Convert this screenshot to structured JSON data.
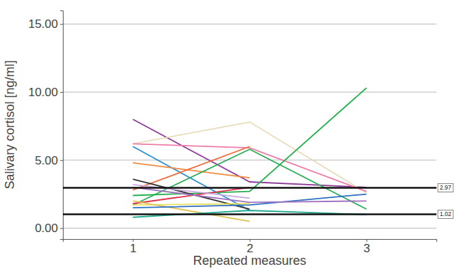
{
  "chart_data": {
    "type": "line",
    "x_label": "Repeated measures",
    "y_label": "Salivary cortisol [ng/ml]",
    "x": [
      1,
      2,
      3
    ],
    "xlim": [
      0.4,
      3.6
    ],
    "xticks": [
      1,
      2,
      3
    ],
    "ylim": [
      -0.8,
      16.0
    ],
    "yticks": [
      {
        "value": 0,
        "label": "0.00"
      },
      {
        "value": 5,
        "label": "5.00"
      },
      {
        "value": 10,
        "label": "10.00"
      },
      {
        "value": 15,
        "label": "15.00"
      }
    ],
    "grid": true,
    "hlines": [
      2.97,
      1.02
    ],
    "series": [
      {
        "color": "#8e3a9a",
        "values": [
          8.0,
          3.4,
          3.0
        ]
      },
      {
        "color": "#e8dcb8",
        "values": [
          6.2,
          7.8,
          2.6
        ]
      },
      {
        "color": "#f07aa8",
        "values": [
          6.2,
          5.9,
          2.7
        ]
      },
      {
        "color": "#2a8fd6",
        "values": [
          6.0,
          1.3,
          null
        ]
      },
      {
        "color": "#f08a3c",
        "values": [
          4.8,
          3.7,
          null
        ]
      },
      {
        "color": "#f26a3a",
        "values": [
          2.8,
          6.0,
          null
        ]
      },
      {
        "color": "#2fae5a",
        "values": [
          1.7,
          5.8,
          1.4
        ]
      },
      {
        "color": "#22b04a",
        "values": [
          2.4,
          2.7,
          10.3
        ]
      },
      {
        "color": "#333333",
        "values": [
          3.6,
          1.4,
          null
        ]
      },
      {
        "color": "#e0304a",
        "values": [
          1.8,
          3.0,
          null
        ]
      },
      {
        "color": "#e8e060",
        "values": [
          1.7,
          1.8,
          null
        ]
      },
      {
        "color": "#e0c050",
        "values": [
          2.0,
          0.5,
          null
        ]
      },
      {
        "color": "#20a890",
        "values": [
          0.8,
          1.3,
          1.0
        ]
      },
      {
        "color": "#2a6fc0",
        "values": [
          1.5,
          1.7,
          2.5
        ]
      },
      {
        "color": "#a070c0",
        "values": [
          3.0,
          1.9,
          2.0
        ]
      },
      {
        "color": "#c8a8e0",
        "values": [
          3.2,
          2.2,
          null
        ]
      }
    ]
  }
}
